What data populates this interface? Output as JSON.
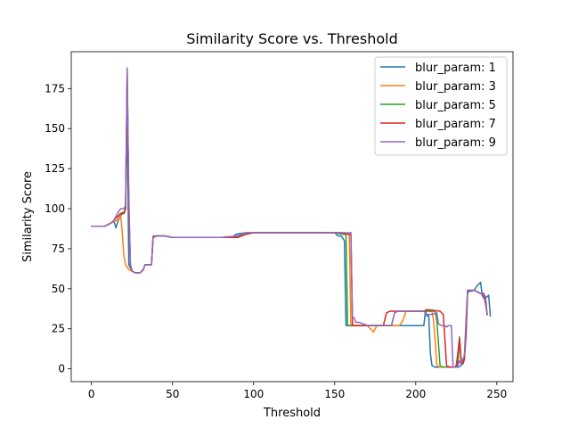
{
  "chart_data": {
    "type": "line",
    "title": "Similarity Score vs. Threshold",
    "xlabel": "Threshold",
    "ylabel": "Similarity Score",
    "xlim": [
      -12.5,
      260
    ],
    "ylim": [
      -8,
      198
    ],
    "xticks": [
      0,
      50,
      100,
      150,
      200,
      250
    ],
    "yticks": [
      0,
      25,
      50,
      75,
      100,
      125,
      150,
      175
    ],
    "grid": false,
    "legend_position": "top-right",
    "series": [
      {
        "name": "blur_param: 1",
        "color": "#1f77b4",
        "points": [
          [
            0,
            89
          ],
          [
            8,
            89
          ],
          [
            12,
            91
          ],
          [
            14,
            92
          ],
          [
            15,
            88
          ],
          [
            17,
            94
          ],
          [
            19,
            97
          ],
          [
            20,
            97
          ],
          [
            21,
            100
          ],
          [
            22,
            160
          ],
          [
            23,
            65
          ],
          [
            25,
            61
          ],
          [
            27,
            60
          ],
          [
            30,
            60
          ],
          [
            32,
            62
          ],
          [
            33,
            65
          ],
          [
            37,
            65
          ],
          [
            38,
            82
          ],
          [
            40,
            83
          ],
          [
            45,
            83
          ],
          [
            50,
            82
          ],
          [
            60,
            82
          ],
          [
            70,
            82
          ],
          [
            80,
            82
          ],
          [
            87,
            82
          ],
          [
            89,
            84
          ],
          [
            95,
            85
          ],
          [
            100,
            85
          ],
          [
            150,
            85
          ],
          [
            152,
            83
          ],
          [
            154,
            83
          ],
          [
            156,
            80
          ],
          [
            157,
            27
          ],
          [
            170,
            27
          ],
          [
            175,
            27
          ],
          [
            200,
            27
          ],
          [
            205,
            27
          ],
          [
            206,
            36
          ],
          [
            207,
            33
          ],
          [
            208,
            33
          ],
          [
            209,
            10
          ],
          [
            210,
            2
          ],
          [
            212,
            1
          ],
          [
            220,
            1
          ],
          [
            226,
            1
          ],
          [
            228,
            2
          ],
          [
            229,
            4
          ],
          [
            230,
            8
          ],
          [
            231,
            20
          ],
          [
            232,
            48
          ],
          [
            236,
            49
          ],
          [
            238,
            52
          ],
          [
            240,
            54
          ],
          [
            241,
            46
          ],
          [
            242,
            44
          ],
          [
            244,
            45
          ],
          [
            245,
            46
          ],
          [
            246,
            33
          ]
        ]
      },
      {
        "name": "blur_param: 3",
        "color": "#ff7f0e",
        "points": [
          [
            0,
            89
          ],
          [
            8,
            89
          ],
          [
            12,
            91
          ],
          [
            14,
            92
          ],
          [
            16,
            93
          ],
          [
            18,
            96
          ],
          [
            19,
            85
          ],
          [
            20,
            70
          ],
          [
            21,
            65
          ],
          [
            23,
            62
          ],
          [
            25,
            61
          ],
          [
            27,
            60
          ],
          [
            30,
            60
          ],
          [
            32,
            62
          ],
          [
            33,
            65
          ],
          [
            37,
            65
          ],
          [
            38,
            82
          ],
          [
            40,
            83
          ],
          [
            45,
            83
          ],
          [
            50,
            82
          ],
          [
            60,
            82
          ],
          [
            70,
            82
          ],
          [
            80,
            82
          ],
          [
            90,
            82
          ],
          [
            95,
            84
          ],
          [
            100,
            85
          ],
          [
            150,
            85
          ],
          [
            155,
            85
          ],
          [
            157,
            84
          ],
          [
            159,
            84
          ],
          [
            160,
            27
          ],
          [
            170,
            27
          ],
          [
            172,
            25
          ],
          [
            174,
            23
          ],
          [
            176,
            27
          ],
          [
            190,
            27
          ],
          [
            192,
            30
          ],
          [
            194,
            36
          ],
          [
            210,
            36
          ],
          [
            211,
            30
          ],
          [
            212,
            18
          ],
          [
            213,
            2
          ],
          [
            215,
            1
          ],
          [
            224,
            1
          ],
          [
            226,
            3
          ],
          [
            227,
            19
          ],
          [
            228,
            5
          ],
          [
            229,
            3
          ],
          [
            230,
            6
          ],
          [
            231,
            24
          ],
          [
            232,
            49
          ],
          [
            236,
            49
          ],
          [
            240,
            47
          ],
          [
            242,
            47
          ],
          [
            243,
            44
          ],
          [
            244,
            34
          ]
        ]
      },
      {
        "name": "blur_param: 5",
        "color": "#2ca02c",
        "points": [
          [
            0,
            89
          ],
          [
            8,
            89
          ],
          [
            12,
            91
          ],
          [
            14,
            93
          ],
          [
            16,
            95
          ],
          [
            18,
            97
          ],
          [
            20,
            98
          ],
          [
            21,
            100
          ],
          [
            22,
            185
          ],
          [
            23,
            100
          ],
          [
            24,
            65
          ],
          [
            25,
            61
          ],
          [
            27,
            60
          ],
          [
            30,
            60
          ],
          [
            32,
            62
          ],
          [
            33,
            65
          ],
          [
            37,
            65
          ],
          [
            38,
            82
          ],
          [
            40,
            83
          ],
          [
            45,
            83
          ],
          [
            50,
            82
          ],
          [
            60,
            82
          ],
          [
            70,
            82
          ],
          [
            80,
            82
          ],
          [
            90,
            82
          ],
          [
            95,
            84
          ],
          [
            100,
            85
          ],
          [
            150,
            85
          ],
          [
            155,
            84
          ],
          [
            157,
            84
          ],
          [
            158,
            27
          ],
          [
            170,
            27
          ],
          [
            185,
            27
          ],
          [
            187,
            35
          ],
          [
            189,
            36
          ],
          [
            212,
            36
          ],
          [
            213,
            30
          ],
          [
            214,
            16
          ],
          [
            215,
            2
          ],
          [
            217,
            1
          ],
          [
            224,
            1
          ],
          [
            226,
            2
          ],
          [
            227,
            20
          ],
          [
            228,
            5
          ],
          [
            229,
            3
          ],
          [
            230,
            6
          ],
          [
            231,
            22
          ],
          [
            232,
            49
          ],
          [
            236,
            49
          ],
          [
            240,
            47
          ],
          [
            242,
            47
          ],
          [
            243,
            44
          ],
          [
            244,
            34
          ]
        ]
      },
      {
        "name": "blur_param: 7",
        "color": "#d62728",
        "points": [
          [
            0,
            89
          ],
          [
            8,
            89
          ],
          [
            12,
            91
          ],
          [
            14,
            93
          ],
          [
            16,
            95
          ],
          [
            18,
            97
          ],
          [
            20,
            97
          ],
          [
            21,
            100
          ],
          [
            22,
            185
          ],
          [
            23,
            100
          ],
          [
            24,
            65
          ],
          [
            25,
            61
          ],
          [
            27,
            60
          ],
          [
            30,
            60
          ],
          [
            32,
            62
          ],
          [
            33,
            65
          ],
          [
            37,
            65
          ],
          [
            38,
            82
          ],
          [
            40,
            83
          ],
          [
            45,
            83
          ],
          [
            50,
            82
          ],
          [
            60,
            82
          ],
          [
            70,
            82
          ],
          [
            80,
            82
          ],
          [
            90,
            82
          ],
          [
            95,
            84
          ],
          [
            100,
            85
          ],
          [
            150,
            85
          ],
          [
            155,
            85
          ],
          [
            157,
            84
          ],
          [
            160,
            84
          ],
          [
            161,
            27
          ],
          [
            170,
            27
          ],
          [
            180,
            27
          ],
          [
            182,
            35
          ],
          [
            184,
            36
          ],
          [
            205,
            36
          ],
          [
            207,
            37
          ],
          [
            215,
            36
          ],
          [
            217,
            34
          ],
          [
            218,
            18
          ],
          [
            219,
            2
          ],
          [
            221,
            1
          ],
          [
            224,
            1
          ],
          [
            225,
            2
          ],
          [
            226,
            10
          ],
          [
            227,
            19
          ],
          [
            228,
            5
          ],
          [
            229,
            3
          ],
          [
            230,
            6
          ],
          [
            231,
            22
          ],
          [
            232,
            49
          ],
          [
            236,
            49
          ],
          [
            240,
            47
          ],
          [
            242,
            47
          ],
          [
            243,
            44
          ],
          [
            244,
            34
          ]
        ]
      },
      {
        "name": "blur_param: 9",
        "color": "#9467bd",
        "points": [
          [
            0,
            89
          ],
          [
            8,
            89
          ],
          [
            12,
            91
          ],
          [
            14,
            93
          ],
          [
            16,
            97
          ],
          [
            18,
            100
          ],
          [
            20,
            100
          ],
          [
            21,
            102
          ],
          [
            22,
            188
          ],
          [
            23,
            110
          ],
          [
            24,
            65
          ],
          [
            25,
            61
          ],
          [
            27,
            60
          ],
          [
            30,
            60
          ],
          [
            32,
            62
          ],
          [
            33,
            65
          ],
          [
            37,
            65
          ],
          [
            38,
            83
          ],
          [
            40,
            83
          ],
          [
            45,
            83
          ],
          [
            50,
            82
          ],
          [
            60,
            82
          ],
          [
            70,
            82
          ],
          [
            80,
            82
          ],
          [
            90,
            83
          ],
          [
            95,
            85
          ],
          [
            100,
            85
          ],
          [
            150,
            85
          ],
          [
            155,
            85
          ],
          [
            160,
            85
          ],
          [
            161,
            32
          ],
          [
            162,
            32
          ],
          [
            163,
            29
          ],
          [
            165,
            29
          ],
          [
            168,
            28
          ],
          [
            170,
            27
          ],
          [
            176,
            27
          ],
          [
            178,
            27
          ],
          [
            185,
            27
          ],
          [
            187,
            35
          ],
          [
            189,
            36
          ],
          [
            205,
            36
          ],
          [
            207,
            34
          ],
          [
            210,
            34
          ],
          [
            213,
            35
          ],
          [
            214,
            28
          ],
          [
            216,
            27
          ],
          [
            218,
            27
          ],
          [
            219,
            26
          ],
          [
            220,
            27
          ],
          [
            222,
            27
          ],
          [
            223,
            1
          ],
          [
            225,
            1
          ],
          [
            226,
            2
          ],
          [
            227,
            5
          ],
          [
            228,
            3
          ],
          [
            229,
            6
          ],
          [
            230,
            8
          ],
          [
            231,
            30
          ],
          [
            232,
            49
          ],
          [
            236,
            49
          ],
          [
            240,
            47
          ],
          [
            242,
            46
          ],
          [
            244,
            35
          ]
        ]
      }
    ]
  }
}
